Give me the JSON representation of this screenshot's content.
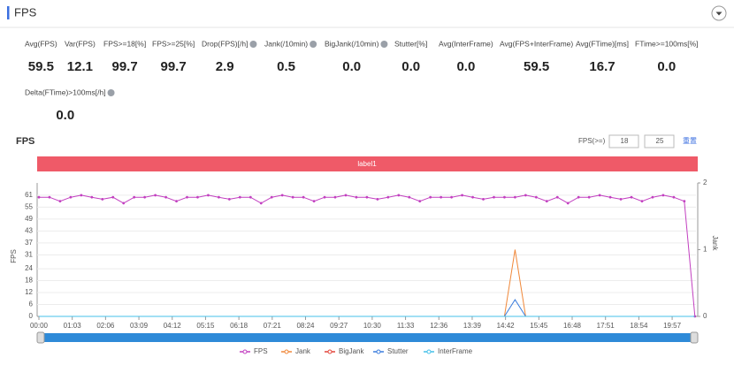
{
  "header": {
    "title": "FPS"
  },
  "stats": [
    {
      "label": "Avg(FPS)",
      "value": "59.5",
      "help": false
    },
    {
      "label": "Var(FPS)",
      "value": "12.1",
      "help": false
    },
    {
      "label": "FPS>=18[%]",
      "value": "99.7",
      "help": false
    },
    {
      "label": "FPS>=25[%]",
      "value": "99.7",
      "help": false
    },
    {
      "label": "Drop(FPS)[/h]",
      "value": "2.9",
      "help": true
    },
    {
      "label": "Jank(/10min)",
      "value": "0.5",
      "help": true
    },
    {
      "label": "BigJank(/10min)",
      "value": "0.0",
      "help": true
    },
    {
      "label": "Stutter[%]",
      "value": "0.0",
      "help": false
    },
    {
      "label": "Avg(InterFrame)",
      "value": "0.0",
      "help": false
    },
    {
      "label": "Avg(FPS+InterFrame)",
      "value": "59.5",
      "help": false
    },
    {
      "label": "Avg(FTime)[ms]",
      "value": "16.7",
      "help": false
    },
    {
      "label": "FTime>=100ms[%]",
      "value": "0.0",
      "help": false
    },
    {
      "label": "Delta(FTime)>100ms[/h]",
      "value": "0.0",
      "help": true
    }
  ],
  "controls": {
    "threshold_label": "FPS(>=)",
    "threshold_1": "18",
    "threshold_2": "25",
    "reset": "重置"
  },
  "band_label": "label1",
  "chart_data": {
    "type": "line",
    "title": "FPS",
    "y_label": "FPS",
    "y2_label": "Jank",
    "x": [
      0,
      20,
      40,
      60,
      80,
      100,
      120,
      140,
      160,
      180,
      200,
      220,
      240,
      260,
      280,
      300,
      320,
      340,
      360,
      380,
      400,
      420,
      440,
      460,
      480,
      500,
      520,
      540,
      560,
      580,
      600,
      620,
      640,
      660,
      680,
      700,
      720,
      740,
      760,
      780,
      800,
      820,
      840,
      860,
      880,
      900,
      920,
      940,
      960,
      980,
      1000,
      1020,
      1040,
      1060,
      1080,
      1100,
      1120,
      1140,
      1160,
      1180,
      1200,
      1220,
      1240
    ],
    "xlim": [
      0,
      1242
    ],
    "xticks": [
      {
        "value": 0,
        "label": "00:00"
      },
      {
        "value": 63,
        "label": "01:03"
      },
      {
        "value": 126,
        "label": "02:06"
      },
      {
        "value": 189,
        "label": "03:09"
      },
      {
        "value": 252,
        "label": "04:12"
      },
      {
        "value": 315,
        "label": "05:15"
      },
      {
        "value": 378,
        "label": "06:18"
      },
      {
        "value": 441,
        "label": "07:21"
      },
      {
        "value": 504,
        "label": "08:24"
      },
      {
        "value": 567,
        "label": "09:27"
      },
      {
        "value": 630,
        "label": "10:30"
      },
      {
        "value": 693,
        "label": "11:33"
      },
      {
        "value": 756,
        "label": "12:36"
      },
      {
        "value": 819,
        "label": "13:39"
      },
      {
        "value": 882,
        "label": "14:42"
      },
      {
        "value": 945,
        "label": "15:45"
      },
      {
        "value": 1008,
        "label": "16:48"
      },
      {
        "value": 1071,
        "label": "17:51"
      },
      {
        "value": 1134,
        "label": "18:54"
      },
      {
        "value": 1197,
        "label": "19:57"
      }
    ],
    "ylim": [
      0,
      67.2
    ],
    "yticks": [
      0,
      6,
      12,
      18,
      24,
      31,
      37,
      43,
      49,
      55,
      61
    ],
    "y2lim": [
      0,
      2
    ],
    "y2ticks": [
      0,
      1,
      2
    ],
    "grid": true,
    "series": [
      {
        "name": "FPS",
        "color": "#c23fc0",
        "values": [
          60,
          60,
          58,
          60,
          61,
          60,
          59,
          60,
          57,
          60,
          60,
          61,
          60,
          58,
          60,
          60,
          61,
          60,
          59,
          60,
          60,
          57,
          60,
          61,
          60,
          60,
          58,
          60,
          60,
          61,
          60,
          60,
          59,
          60,
          61,
          60,
          58,
          60,
          60,
          60,
          61,
          60,
          59,
          60,
          60,
          60,
          61,
          60,
          58,
          60,
          57,
          60,
          60,
          61,
          60,
          59,
          60,
          58,
          60,
          61,
          60,
          58,
          0
        ]
      },
      {
        "name": "Jank",
        "color": "#f0883a",
        "axis": "y2",
        "values": [
          0,
          0,
          0,
          0,
          0,
          0,
          0,
          0,
          0,
          0,
          0,
          0,
          0,
          0,
          0,
          0,
          0,
          0,
          0,
          0,
          0,
          0,
          0,
          0,
          0,
          0,
          0,
          0,
          0,
          0,
          0,
          0,
          0,
          0,
          0,
          0,
          0,
          0,
          0,
          0,
          0,
          0,
          0,
          0,
          0,
          1,
          0,
          0,
          0,
          0,
          0,
          0,
          0,
          0,
          0,
          0,
          0,
          0,
          0,
          0,
          0,
          0,
          0
        ]
      },
      {
        "name": "BigJank",
        "color": "#e2453b",
        "axis": "y2",
        "values": [
          0,
          0,
          0,
          0,
          0,
          0,
          0,
          0,
          0,
          0,
          0,
          0,
          0,
          0,
          0,
          0,
          0,
          0,
          0,
          0,
          0,
          0,
          0,
          0,
          0,
          0,
          0,
          0,
          0,
          0,
          0,
          0,
          0,
          0,
          0,
          0,
          0,
          0,
          0,
          0,
          0,
          0,
          0,
          0,
          0,
          0,
          0,
          0,
          0,
          0,
          0,
          0,
          0,
          0,
          0,
          0,
          0,
          0,
          0,
          0,
          0,
          0,
          0
        ]
      },
      {
        "name": "Stutter",
        "color": "#3b7ddd",
        "axis": "y2",
        "values": [
          0,
          0,
          0,
          0,
          0,
          0,
          0,
          0,
          0,
          0,
          0,
          0,
          0,
          0,
          0,
          0,
          0,
          0,
          0,
          0,
          0,
          0,
          0,
          0,
          0,
          0,
          0,
          0,
          0,
          0,
          0,
          0,
          0,
          0,
          0,
          0,
          0,
          0,
          0,
          0,
          0,
          0,
          0,
          0,
          0,
          0.25,
          0,
          0,
          0,
          0,
          0,
          0,
          0,
          0,
          0,
          0,
          0,
          0,
          0,
          0,
          0,
          0,
          0
        ]
      },
      {
        "name": "InterFrame",
        "color": "#45c0e8",
        "axis": "y2",
        "values": [
          0,
          0,
          0,
          0,
          0,
          0,
          0,
          0,
          0,
          0,
          0,
          0,
          0,
          0,
          0,
          0,
          0,
          0,
          0,
          0,
          0,
          0,
          0,
          0,
          0,
          0,
          0,
          0,
          0,
          0,
          0,
          0,
          0,
          0,
          0,
          0,
          0,
          0,
          0,
          0,
          0,
          0,
          0,
          0,
          0,
          0,
          0,
          0,
          0,
          0,
          0,
          0,
          0,
          0,
          0,
          0,
          0,
          0,
          0,
          0,
          0,
          0,
          0
        ]
      }
    ]
  }
}
